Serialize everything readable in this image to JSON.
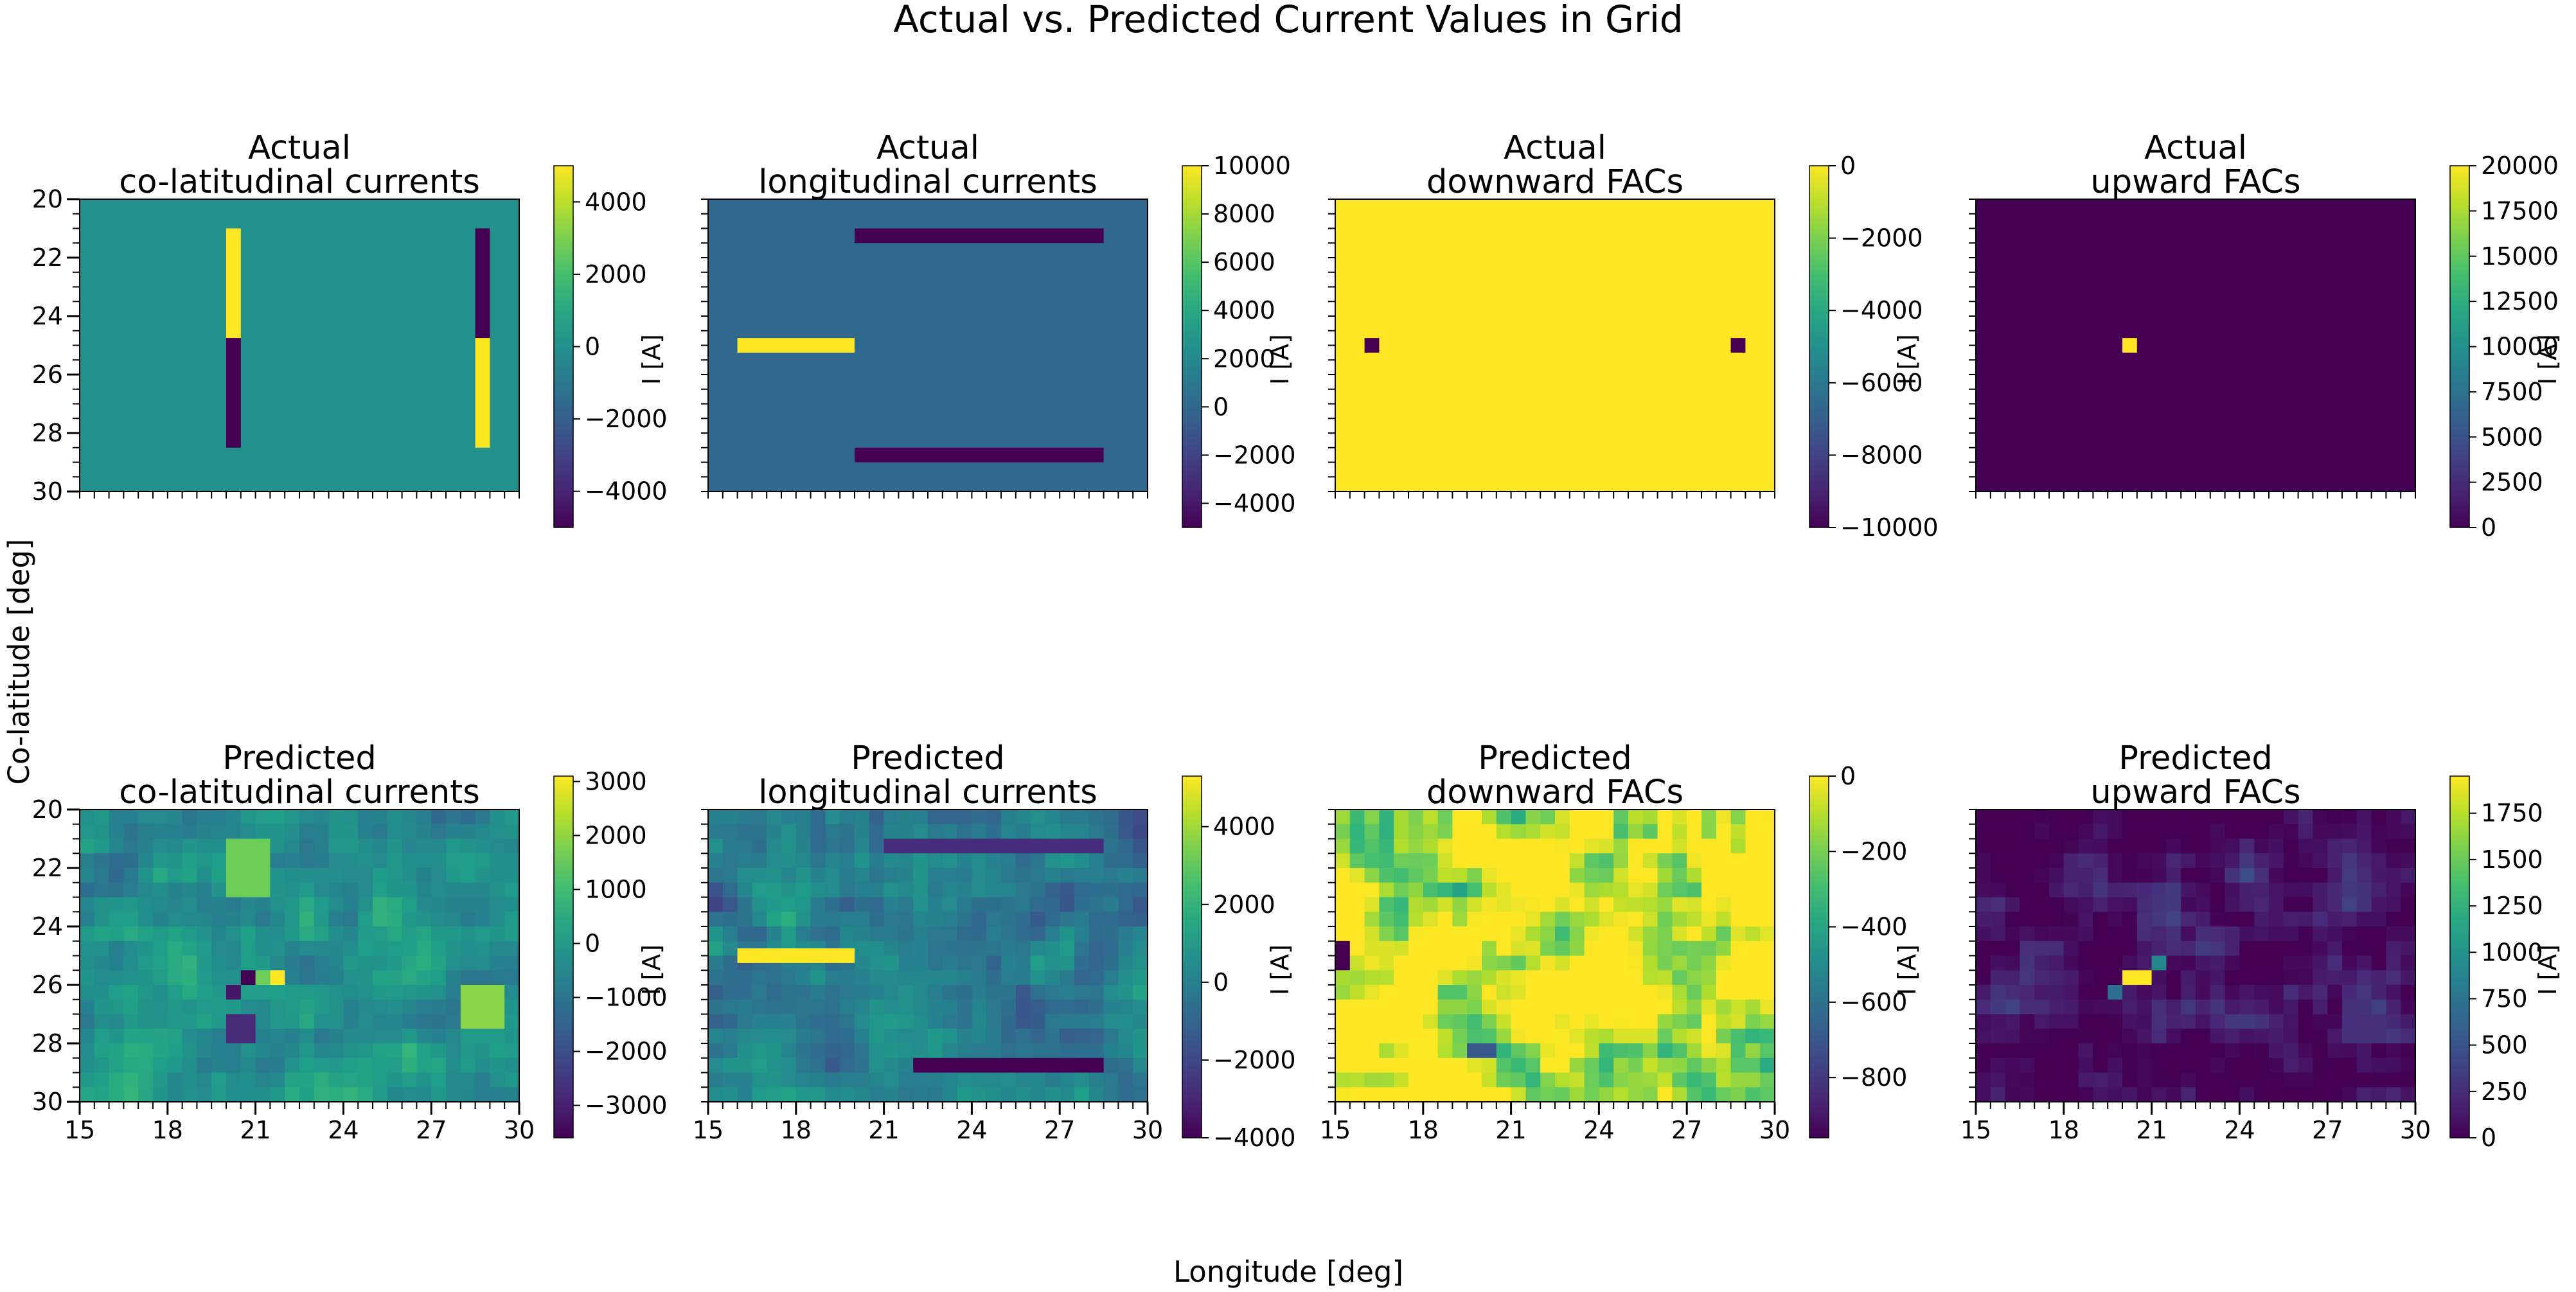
{
  "title": "Actual vs. Predicted Current Values in Grid",
  "xlabel": "Longitude [deg]",
  "ylabel": "Co-latitude [deg]",
  "colorbar_label": "I [A]",
  "colormap": "viridis",
  "chart_data": [
    {
      "type": "heatmap",
      "title_lines": [
        "Actual",
        "co-latitudinal currents"
      ],
      "xlim": [
        15,
        30
      ],
      "ylim": [
        30,
        20
      ],
      "x_ticklabels": [],
      "y_ticklabels": [
        "20",
        "22",
        "24",
        "26",
        "28",
        "30"
      ],
      "y_ticks": [
        20,
        22,
        24,
        26,
        28,
        30
      ],
      "colorbar": {
        "min": -5000,
        "max": 5000,
        "ticks": [
          4000,
          2000,
          0,
          -2000,
          -4000
        ],
        "tick_labels": [
          "4000",
          "2000",
          "0",
          "−2000",
          "−4000"
        ]
      },
      "background": 0,
      "cells": [
        {
          "x": [
            20,
            20.5
          ],
          "y": [
            21,
            24.75
          ],
          "value": 5000
        },
        {
          "x": [
            20,
            20.5
          ],
          "y": [
            24.75,
            28.5
          ],
          "value": -5000
        },
        {
          "x": [
            28.5,
            29
          ],
          "y": [
            21,
            24.75
          ],
          "value": -5000
        },
        {
          "x": [
            28.5,
            29
          ],
          "y": [
            24.75,
            28.5
          ],
          "value": 5000
        }
      ]
    },
    {
      "type": "heatmap",
      "title_lines": [
        "Actual",
        "longitudinal currents"
      ],
      "xlim": [
        15,
        30
      ],
      "ylim": [
        30,
        20
      ],
      "x_ticklabels": [],
      "y_ticklabels": [],
      "y_ticks": [],
      "colorbar": {
        "min": -5000,
        "max": 10000,
        "ticks": [
          10000,
          8000,
          6000,
          4000,
          2000,
          0,
          -2000,
          -4000
        ],
        "tick_labels": [
          "10000",
          "8000",
          "6000",
          "4000",
          "2000",
          "0",
          "−2000",
          "−4000"
        ]
      },
      "background": 0,
      "cells": [
        {
          "x": [
            16,
            20
          ],
          "y": [
            24.75,
            25.25
          ],
          "value": 10000
        },
        {
          "x": [
            20,
            28.5
          ],
          "y": [
            21,
            21.5
          ],
          "value": -5000
        },
        {
          "x": [
            20,
            28.5
          ],
          "y": [
            28.5,
            29
          ],
          "value": -5000
        }
      ]
    },
    {
      "type": "heatmap",
      "title_lines": [
        "Actual",
        "downward FACs"
      ],
      "xlim": [
        15,
        30
      ],
      "ylim": [
        30,
        20
      ],
      "x_ticklabels": [],
      "y_ticklabels": [],
      "y_ticks": [],
      "colorbar": {
        "min": -10000,
        "max": 0,
        "ticks": [
          0,
          -2000,
          -4000,
          -6000,
          -8000,
          -10000
        ],
        "tick_labels": [
          "0",
          "−2000",
          "−4000",
          "−6000",
          "−8000",
          "−10000"
        ]
      },
      "background": 0,
      "cells": [
        {
          "x": [
            16,
            16.5
          ],
          "y": [
            24.75,
            25.25
          ],
          "value": -10000
        },
        {
          "x": [
            28.5,
            29
          ],
          "y": [
            24.75,
            25.25
          ],
          "value": -10000
        }
      ]
    },
    {
      "type": "heatmap",
      "title_lines": [
        "Actual",
        "upward FACs"
      ],
      "xlim": [
        15,
        30
      ],
      "ylim": [
        30,
        20
      ],
      "x_ticklabels": [],
      "y_ticklabels": [],
      "y_ticks": [],
      "colorbar": {
        "min": 0,
        "max": 20000,
        "ticks": [
          20000,
          17500,
          15000,
          12500,
          10000,
          7500,
          5000,
          2500,
          0
        ],
        "tick_labels": [
          "20000",
          "17500",
          "15000",
          "12500",
          "10000",
          "7500",
          "5000",
          "2500",
          "0"
        ]
      },
      "background": 0,
      "cells": [
        {
          "x": [
            20,
            20.5
          ],
          "y": [
            24.75,
            25.25
          ],
          "value": 20000
        }
      ]
    },
    {
      "type": "heatmap",
      "title_lines": [
        "Predicted",
        "co-latitudinal currents"
      ],
      "xlim": [
        15,
        30
      ],
      "ylim": [
        30,
        20
      ],
      "x_ticklabels": [
        "15",
        "18",
        "21",
        "24",
        "27",
        "30"
      ],
      "x_ticks": [
        15,
        18,
        21,
        24,
        27,
        30
      ],
      "y_ticklabels": [
        "20",
        "22",
        "24",
        "26",
        "28",
        "30"
      ],
      "y_ticks": [
        20,
        22,
        24,
        26,
        28,
        30
      ],
      "colorbar": {
        "min": -3600,
        "max": 3100,
        "ticks": [
          3000,
          2000,
          1000,
          0,
          -1000,
          -2000,
          -3000
        ],
        "tick_labels": [
          "3000",
          "2000",
          "1000",
          "0",
          "−1000",
          "−2000",
          "−3000"
        ]
      },
      "grid": {
        "cols": 30,
        "rows": 20,
        "seed": 11,
        "base": -300,
        "amp": 900
      },
      "hotspots": [
        {
          "x": [
            21.5,
            22
          ],
          "y": [
            25.5,
            26
          ],
          "value": 3100
        },
        {
          "x": [
            20.5,
            21
          ],
          "y": [
            25.5,
            26
          ],
          "value": -3600
        },
        {
          "x": [
            20,
            20.5
          ],
          "y": [
            26,
            26.5
          ],
          "value": -3200
        },
        {
          "x": [
            21,
            21.5
          ],
          "y": [
            25.5,
            26
          ],
          "value": 1600
        },
        {
          "x": [
            20,
            21
          ],
          "y": [
            27,
            28
          ],
          "value": -2800
        },
        {
          "x": [
            20,
            21.5
          ],
          "y": [
            21,
            23
          ],
          "value": 1600
        },
        {
          "x": [
            28,
            29.5
          ],
          "y": [
            26,
            27.5
          ],
          "value": 1900
        }
      ]
    },
    {
      "type": "heatmap",
      "title_lines": [
        "Predicted",
        "longitudinal currents"
      ],
      "xlim": [
        15,
        30
      ],
      "ylim": [
        30,
        20
      ],
      "x_ticklabels": [
        "15",
        "18",
        "21",
        "24",
        "27",
        "30"
      ],
      "x_ticks": [
        15,
        18,
        21,
        24,
        27,
        30
      ],
      "y_ticklabels": [],
      "y_ticks": [],
      "colorbar": {
        "min": -4000,
        "max": 5300,
        "ticks": [
          4000,
          2000,
          0,
          -2000,
          -4000
        ],
        "tick_labels": [
          "4000",
          "2000",
          "0",
          "−2000",
          "−4000"
        ]
      },
      "grid": {
        "cols": 30,
        "rows": 20,
        "seed": 23,
        "base": 0,
        "amp": 1400
      },
      "hotspots": [
        {
          "x": [
            16,
            20
          ],
          "y": [
            24.75,
            25.25
          ],
          "value": 5300
        },
        {
          "x": [
            21,
            28.5
          ],
          "y": [
            21,
            21.5
          ],
          "value": -2800
        },
        {
          "x": [
            22,
            28.5
          ],
          "y": [
            28.5,
            29
          ],
          "value": -4000
        }
      ]
    },
    {
      "type": "heatmap",
      "title_lines": [
        "Predicted",
        "downward FACs"
      ],
      "xlim": [
        15,
        30
      ],
      "ylim": [
        30,
        20
      ],
      "x_ticklabels": [
        "15",
        "18",
        "21",
        "24",
        "27",
        "30"
      ],
      "x_ticks": [
        15,
        18,
        21,
        24,
        27,
        30
      ],
      "y_ticklabels": [],
      "y_ticks": [],
      "colorbar": {
        "min": -960,
        "max": 0,
        "ticks": [
          0,
          -200,
          -400,
          -600,
          -800
        ],
        "tick_labels": [
          "0",
          "−200",
          "−400",
          "−600",
          "−800"
        ]
      },
      "grid": {
        "cols": 30,
        "rows": 20,
        "seed": 37,
        "base": -40,
        "amp": 330,
        "clip_max": 0
      },
      "hotspots": [
        {
          "x": [
            15,
            15.5
          ],
          "y": [
            24.5,
            25.5
          ],
          "value": -960
        },
        {
          "x": [
            19.5,
            20.5
          ],
          "y": [
            28,
            28.5
          ],
          "value": -700
        }
      ]
    },
    {
      "type": "heatmap",
      "title_lines": [
        "Predicted",
        "upward FACs"
      ],
      "xlim": [
        15,
        30
      ],
      "ylim": [
        30,
        20
      ],
      "x_ticklabels": [
        "15",
        "18",
        "21",
        "24",
        "27",
        "30"
      ],
      "x_ticks": [
        15,
        18,
        21,
        24,
        27,
        30
      ],
      "y_ticklabels": [],
      "y_ticks": [],
      "colorbar": {
        "min": 0,
        "max": 1950,
        "ticks": [
          1750,
          1500,
          1250,
          1000,
          750,
          500,
          250,
          0
        ],
        "tick_labels": [
          "1750",
          "1500",
          "1250",
          "1000",
          "750",
          "500",
          "250",
          "0"
        ]
      },
      "grid": {
        "cols": 30,
        "rows": 20,
        "seed": 53,
        "base": 80,
        "amp": 300,
        "clip_min": 0
      },
      "hotspots": [
        {
          "x": [
            20,
            21
          ],
          "y": [
            25.5,
            26
          ],
          "value": 1950
        },
        {
          "x": [
            21,
            21.5
          ],
          "y": [
            25,
            25.5
          ],
          "value": 900
        },
        {
          "x": [
            19.5,
            20
          ],
          "y": [
            26,
            26.5
          ],
          "value": 700
        }
      ]
    }
  ]
}
